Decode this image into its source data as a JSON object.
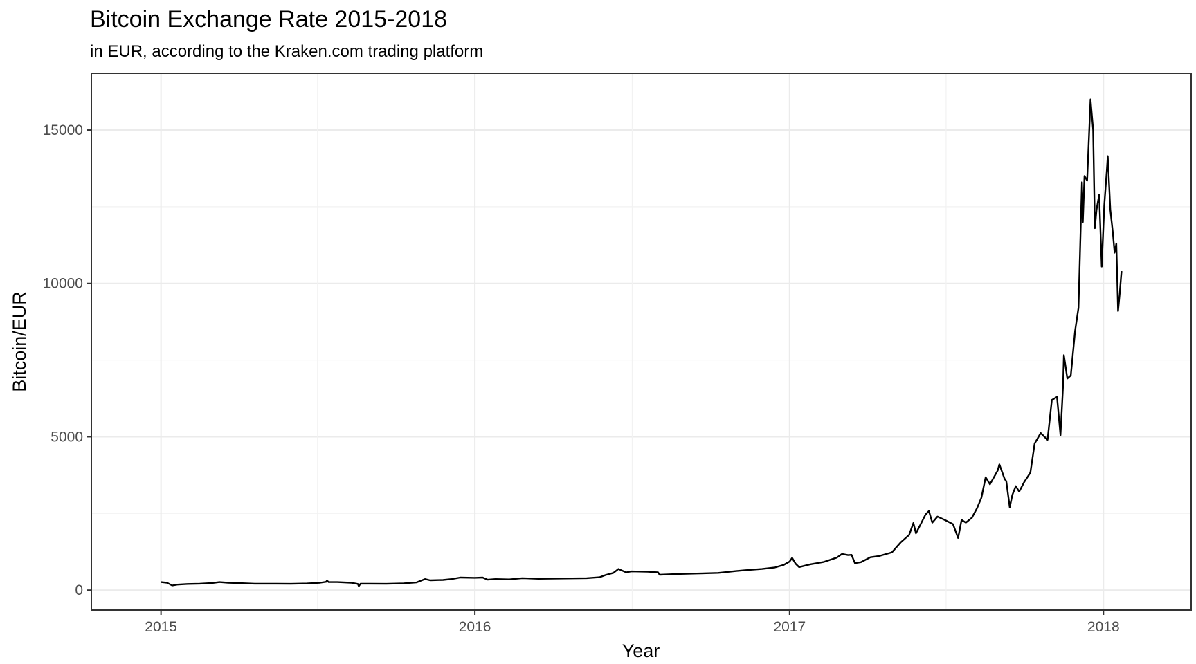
{
  "chart_data": {
    "type": "line",
    "title": "Bitcoin Exchange Rate 2015-2018",
    "subtitle": "in EUR, according to the Kraken.com trading platform",
    "xlabel": "Year",
    "ylabel": "Bitcoin/EUR",
    "x_ticks": [
      "2015",
      "2016",
      "2017",
      "2018"
    ],
    "y_ticks": [
      "0",
      "5000",
      "10000",
      "15000"
    ],
    "xlim": [
      "2014-10-12",
      "2018-04-13"
    ],
    "ylim": [
      -650,
      16850
    ],
    "grid": true,
    "legend": "none",
    "line_color": "#000000",
    "series": [
      {
        "points": [
          [
            "2015-01-01",
            260
          ],
          [
            "2015-01-08",
            240
          ],
          [
            "2015-01-14",
            150
          ],
          [
            "2015-01-20",
            180
          ],
          [
            "2015-02-01",
            200
          ],
          [
            "2015-02-15",
            210
          ],
          [
            "2015-03-01",
            230
          ],
          [
            "2015-03-10",
            260
          ],
          [
            "2015-03-20",
            240
          ],
          [
            "2015-04-01",
            230
          ],
          [
            "2015-04-20",
            210
          ],
          [
            "2015-05-15",
            210
          ],
          [
            "2015-06-01",
            205
          ],
          [
            "2015-06-20",
            215
          ],
          [
            "2015-07-05",
            240
          ],
          [
            "2015-07-12",
            270
          ],
          [
            "2015-07-13",
            310
          ],
          [
            "2015-07-15",
            260
          ],
          [
            "2015-07-25",
            260
          ],
          [
            "2015-08-10",
            240
          ],
          [
            "2015-08-18",
            200
          ],
          [
            "2015-08-19",
            130
          ],
          [
            "2015-08-21",
            210
          ],
          [
            "2015-09-01",
            210
          ],
          [
            "2015-09-20",
            205
          ],
          [
            "2015-10-10",
            220
          ],
          [
            "2015-10-25",
            250
          ],
          [
            "2015-11-04",
            360
          ],
          [
            "2015-11-10",
            320
          ],
          [
            "2015-11-25",
            330
          ],
          [
            "2015-12-05",
            360
          ],
          [
            "2015-12-15",
            410
          ],
          [
            "2016-01-01",
            400
          ],
          [
            "2016-01-10",
            410
          ],
          [
            "2016-01-16",
            340
          ],
          [
            "2016-01-25",
            360
          ],
          [
            "2016-02-10",
            350
          ],
          [
            "2016-02-25",
            390
          ],
          [
            "2016-03-15",
            370
          ],
          [
            "2016-04-15",
            380
          ],
          [
            "2016-05-10",
            390
          ],
          [
            "2016-05-25",
            420
          ],
          [
            "2016-06-01",
            490
          ],
          [
            "2016-06-10",
            560
          ],
          [
            "2016-06-16",
            690
          ],
          [
            "2016-06-20",
            640
          ],
          [
            "2016-06-25",
            580
          ],
          [
            "2016-07-01",
            610
          ],
          [
            "2016-07-20",
            600
          ],
          [
            "2016-08-01",
            580
          ],
          [
            "2016-08-03",
            500
          ],
          [
            "2016-08-20",
            520
          ],
          [
            "2016-09-15",
            540
          ],
          [
            "2016-10-10",
            560
          ],
          [
            "2016-10-30",
            620
          ],
          [
            "2016-11-10",
            650
          ],
          [
            "2016-11-30",
            690
          ],
          [
            "2016-12-15",
            740
          ],
          [
            "2016-12-25",
            820
          ],
          [
            "2017-01-01",
            930
          ],
          [
            "2017-01-04",
            1050
          ],
          [
            "2017-01-08",
            860
          ],
          [
            "2017-01-12",
            750
          ],
          [
            "2017-01-25",
            840
          ],
          [
            "2017-02-10",
            920
          ],
          [
            "2017-02-25",
            1060
          ],
          [
            "2017-03-03",
            1180
          ],
          [
            "2017-03-10",
            1140
          ],
          [
            "2017-03-14",
            1150
          ],
          [
            "2017-03-18",
            880
          ],
          [
            "2017-03-25",
            910
          ],
          [
            "2017-04-05",
            1070
          ],
          [
            "2017-04-15",
            1110
          ],
          [
            "2017-04-30",
            1230
          ],
          [
            "2017-05-10",
            1550
          ],
          [
            "2017-05-20",
            1800
          ],
          [
            "2017-05-25",
            2190
          ],
          [
            "2017-05-28",
            1850
          ],
          [
            "2017-06-03",
            2180
          ],
          [
            "2017-06-08",
            2460
          ],
          [
            "2017-06-12",
            2580
          ],
          [
            "2017-06-16",
            2200
          ],
          [
            "2017-06-22",
            2400
          ],
          [
            "2017-07-01",
            2280
          ],
          [
            "2017-07-10",
            2150
          ],
          [
            "2017-07-16",
            1700
          ],
          [
            "2017-07-20",
            2290
          ],
          [
            "2017-07-25",
            2200
          ],
          [
            "2017-08-01",
            2360
          ],
          [
            "2017-08-07",
            2670
          ],
          [
            "2017-08-12",
            3010
          ],
          [
            "2017-08-17",
            3680
          ],
          [
            "2017-08-22",
            3450
          ],
          [
            "2017-08-31",
            3900
          ],
          [
            "2017-09-02",
            4100
          ],
          [
            "2017-09-08",
            3630
          ],
          [
            "2017-09-10",
            3550
          ],
          [
            "2017-09-14",
            2700
          ],
          [
            "2017-09-17",
            3100
          ],
          [
            "2017-09-21",
            3390
          ],
          [
            "2017-09-25",
            3210
          ],
          [
            "2017-10-01",
            3530
          ],
          [
            "2017-10-08",
            3830
          ],
          [
            "2017-10-13",
            4780
          ],
          [
            "2017-10-20",
            5120
          ],
          [
            "2017-10-28",
            4900
          ],
          [
            "2017-11-02",
            6200
          ],
          [
            "2017-11-08",
            6300
          ],
          [
            "2017-11-12",
            5050
          ],
          [
            "2017-11-15",
            6650
          ],
          [
            "2017-11-16",
            7660
          ],
          [
            "2017-11-20",
            6900
          ],
          [
            "2017-11-24",
            7000
          ],
          [
            "2017-11-29",
            8450
          ],
          [
            "2017-12-03",
            9200
          ],
          [
            "2017-12-07",
            13300
          ],
          [
            "2017-12-08",
            12000
          ],
          [
            "2017-12-10",
            13500
          ],
          [
            "2017-12-13",
            13350
          ],
          [
            "2017-12-17",
            16000
          ],
          [
            "2017-12-20",
            15000
          ],
          [
            "2017-12-22",
            11800
          ],
          [
            "2017-12-24",
            12400
          ],
          [
            "2017-12-27",
            12900
          ],
          [
            "2017-12-30",
            10550
          ],
          [
            "2018-01-02",
            12550
          ],
          [
            "2018-01-05",
            13700
          ],
          [
            "2018-01-06",
            14150
          ],
          [
            "2018-01-09",
            12400
          ],
          [
            "2018-01-12",
            11650
          ],
          [
            "2018-01-14",
            11000
          ],
          [
            "2018-01-16",
            11300
          ],
          [
            "2018-01-18",
            9100
          ],
          [
            "2018-01-20",
            9700
          ],
          [
            "2018-01-22",
            10400
          ]
        ]
      }
    ]
  }
}
